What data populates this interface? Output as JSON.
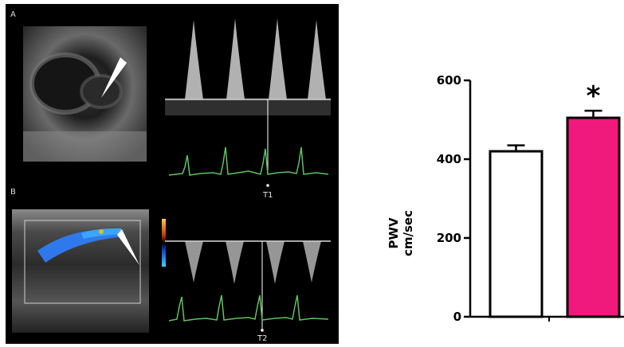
{
  "echo": {
    "panel_a_label": "A",
    "panel_b_label": "B",
    "marker_t1": "T1",
    "marker_t2": "T2"
  },
  "colors": {
    "ecg_trace": "#5fc15f",
    "doppler": "#e8e8e8",
    "arrow": "#ffffff",
    "color_flow_blue": "#2f7fff",
    "bar_control": "#ffffff",
    "bar_treated": "#f0197c"
  },
  "chart_data": {
    "type": "bar",
    "categories": [
      "",
      ""
    ],
    "values": [
      420,
      505
    ],
    "errors": [
      15,
      18
    ],
    "bar_colors": [
      "#ffffff",
      "#f0197c"
    ],
    "ylabel_line1": "PWV",
    "ylabel_line2": "cm/sec",
    "ylim": [
      0,
      600
    ],
    "yticks": [
      0,
      200,
      400,
      600
    ],
    "annotation": "*",
    "annotation_bar_index": 1,
    "grid": false,
    "legend": "none"
  }
}
